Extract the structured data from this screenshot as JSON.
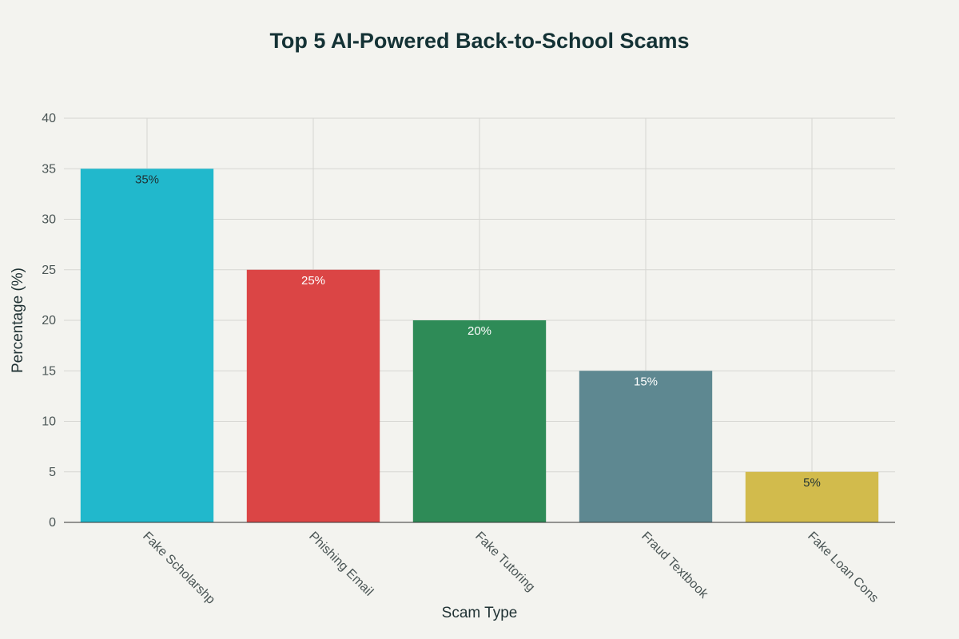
{
  "chart_data": {
    "type": "bar",
    "title": "Top 5 AI-Powered Back-to-School Scams",
    "xlabel": "Scam Type",
    "ylabel": "Percentage (%)",
    "categories": [
      "Fake Scholarshp",
      "Phishing Email",
      "Fake Tutoring",
      "Fraud Textbook",
      "Fake Loan Cons"
    ],
    "values": [
      35,
      25,
      20,
      15,
      5
    ],
    "data_labels": [
      "35%",
      "25%",
      "20%",
      "15%",
      "5%"
    ],
    "colors": [
      "#21b8cc",
      "#db4545",
      "#2e8b57",
      "#5e8891",
      "#d2bb4c"
    ],
    "label_colors": [
      "#1f3133",
      "#ffffff",
      "#ffffff",
      "#ffffff",
      "#1f3133"
    ],
    "ylim": [
      0,
      40
    ],
    "yticks": [
      0,
      5,
      10,
      15,
      20,
      25,
      30,
      35,
      40
    ],
    "grid": true,
    "legend": false
  }
}
